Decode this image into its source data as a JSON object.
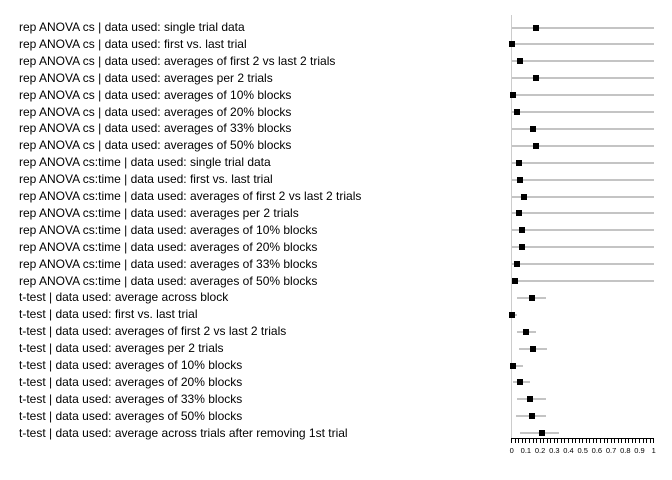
{
  "chart_data": {
    "type": "scatter",
    "subtype": "dot-with-interval-forest-plot",
    "orientation": "horizontal",
    "title": "",
    "xlabel": "",
    "ylabel": "",
    "xlim": [
      0,
      1
    ],
    "grid": "off",
    "legend": "none",
    "x_major_ticks": [
      0,
      0.1,
      0.2,
      0.3,
      0.4,
      0.5,
      0.6,
      0.7,
      0.8,
      0.9,
      1
    ],
    "x_tick_labels": [
      "0",
      "0.1",
      "0.2",
      "0.3",
      "0.4",
      "0.5",
      "0.6",
      "0.7",
      "0.8",
      "0.9",
      "1"
    ],
    "x_minor_tick_step": 0.025,
    "rows": [
      {
        "label": "rep ANOVA cs | data used: single trial data",
        "value": 0.17,
        "lo": 0.0,
        "hi": 1.0
      },
      {
        "label": "rep ANOVA cs | data used: first vs. last trial",
        "value": 0.0,
        "lo": 0.0,
        "hi": 1.0
      },
      {
        "label": "rep ANOVA cs | data used: averages of first 2 vs last 2 trials",
        "value": 0.06,
        "lo": 0.0,
        "hi": 1.0
      },
      {
        "label": "rep ANOVA cs | data used: averages per 2 trials",
        "value": 0.17,
        "lo": 0.0,
        "hi": 1.0
      },
      {
        "label": "rep ANOVA cs | data used: averages of 10% blocks",
        "value": 0.01,
        "lo": 0.0,
        "hi": 1.0
      },
      {
        "label": "rep ANOVA cs | data used: averages of 20% blocks",
        "value": 0.04,
        "lo": 0.0,
        "hi": 1.0
      },
      {
        "label": "rep ANOVA cs | data used: averages of 33% blocks",
        "value": 0.15,
        "lo": 0.0,
        "hi": 1.0
      },
      {
        "label": "rep ANOVA cs | data used: averages of 50% blocks",
        "value": 0.17,
        "lo": 0.0,
        "hi": 1.0
      },
      {
        "label": "rep ANOVA cs:time | data used: single trial data",
        "value": 0.05,
        "lo": 0.0,
        "hi": 1.0
      },
      {
        "label": "rep ANOVA cs:time | data used: first vs. last trial",
        "value": 0.06,
        "lo": 0.0,
        "hi": 1.0
      },
      {
        "label": "rep ANOVA cs:time | data used: averages of first 2 vs last 2 trials",
        "value": 0.09,
        "lo": 0.0,
        "hi": 1.0
      },
      {
        "label": "rep ANOVA cs:time | data used: averages per 2 trials",
        "value": 0.05,
        "lo": 0.0,
        "hi": 1.0
      },
      {
        "label": "rep ANOVA cs:time | data used: averages of 10% blocks",
        "value": 0.07,
        "lo": 0.0,
        "hi": 1.0
      },
      {
        "label": "rep ANOVA cs:time | data used: averages of 20% blocks",
        "value": 0.07,
        "lo": 0.0,
        "hi": 1.0
      },
      {
        "label": "rep ANOVA cs:time | data used: averages of 33% blocks",
        "value": 0.04,
        "lo": 0.0,
        "hi": 1.0
      },
      {
        "label": "rep ANOVA cs:time | data used: averages of 50% blocks",
        "value": 0.02,
        "lo": 0.0,
        "hi": 1.0
      },
      {
        "label": "t-test | data used: average across block",
        "value": 0.14,
        "lo": 0.04,
        "hi": 0.24
      },
      {
        "label": "t-test | data used: first vs. last trial",
        "value": 0.0,
        "lo": 0.0,
        "hi": 0.04
      },
      {
        "label": "t-test | data used: averages of first 2 vs last 2 trials",
        "value": 0.1,
        "lo": 0.04,
        "hi": 0.17
      },
      {
        "label": "t-test | data used: averages per 2 trials",
        "value": 0.15,
        "lo": 0.05,
        "hi": 0.25
      },
      {
        "label": "t-test | data used: averages of 10% blocks",
        "value": 0.01,
        "lo": 0.0,
        "hi": 0.08
      },
      {
        "label": "t-test | data used: averages of 20% blocks",
        "value": 0.055,
        "lo": 0.01,
        "hi": 0.13
      },
      {
        "label": "t-test | data used: averages of 33% blocks",
        "value": 0.13,
        "lo": 0.04,
        "hi": 0.24
      },
      {
        "label": "t-test | data used: averages of 50% blocks",
        "value": 0.14,
        "lo": 0.03,
        "hi": 0.24
      },
      {
        "label": "t-test | data used: average across trials after removing 1st trial",
        "value": 0.21,
        "lo": 0.06,
        "hi": 0.33
      }
    ],
    "colors": {
      "marker": "#000000",
      "interval_line": "#c4c4c4",
      "y_axis_line": "#cccccc",
      "ruler": "#000000",
      "text": "#000000",
      "background": "#ffffff"
    },
    "marker_shape": "square"
  }
}
